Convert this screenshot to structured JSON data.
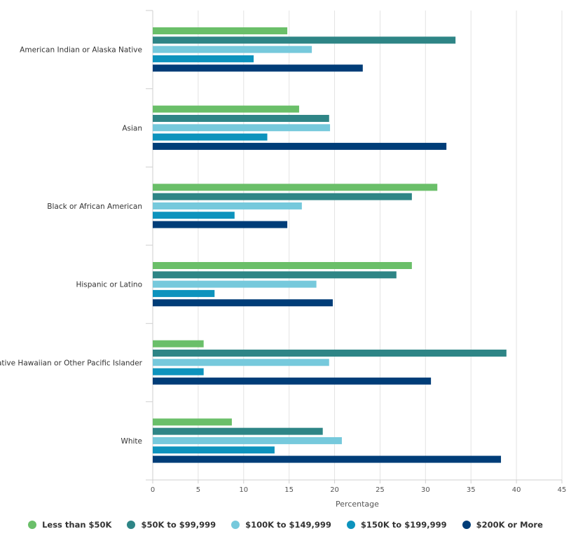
{
  "chart_data": {
    "type": "bar",
    "orientation": "horizontal",
    "title": "",
    "xlabel": "Percentage",
    "xlim": [
      0,
      45
    ],
    "xticks": [
      0,
      5,
      10,
      15,
      20,
      25,
      30,
      35,
      40,
      45
    ],
    "grid": true,
    "legend_position": "bottom",
    "categories": [
      "American Indian or Alaska Native",
      "Asian",
      "Black or African American",
      "Hispanic or Latino",
      "Native Hawaiian or Other Pacific Islander",
      "White"
    ],
    "series": [
      {
        "name": "Less than $50K",
        "color": "#6abf69",
        "values": [
          14.8,
          16.1,
          31.3,
          28.5,
          5.6,
          8.7
        ]
      },
      {
        "name": "$50K to $99,999",
        "color": "#2e8586",
        "values": [
          33.3,
          19.4,
          28.5,
          26.8,
          38.9,
          18.7
        ]
      },
      {
        "name": "$100K to $149,999",
        "color": "#76c9dc",
        "values": [
          17.5,
          19.5,
          16.4,
          18.0,
          19.4,
          20.8
        ]
      },
      {
        "name": "$150K to $199,999",
        "color": "#0d93bd",
        "values": [
          11.1,
          12.6,
          9.0,
          6.8,
          5.6,
          13.4
        ]
      },
      {
        "name": "$200K or More",
        "color": "#003d78",
        "values": [
          23.1,
          32.3,
          14.8,
          19.8,
          30.6,
          38.3
        ]
      }
    ]
  }
}
